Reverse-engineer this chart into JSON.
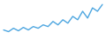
{
  "y_values": [
    3,
    2,
    4,
    2.5,
    4.5,
    3,
    5,
    4,
    6,
    5,
    8,
    6,
    9,
    7,
    11,
    9,
    14,
    10,
    16,
    14,
    18
  ],
  "line_color": "#4da6e0",
  "line_width": 1.0,
  "background_color": "#ffffff"
}
